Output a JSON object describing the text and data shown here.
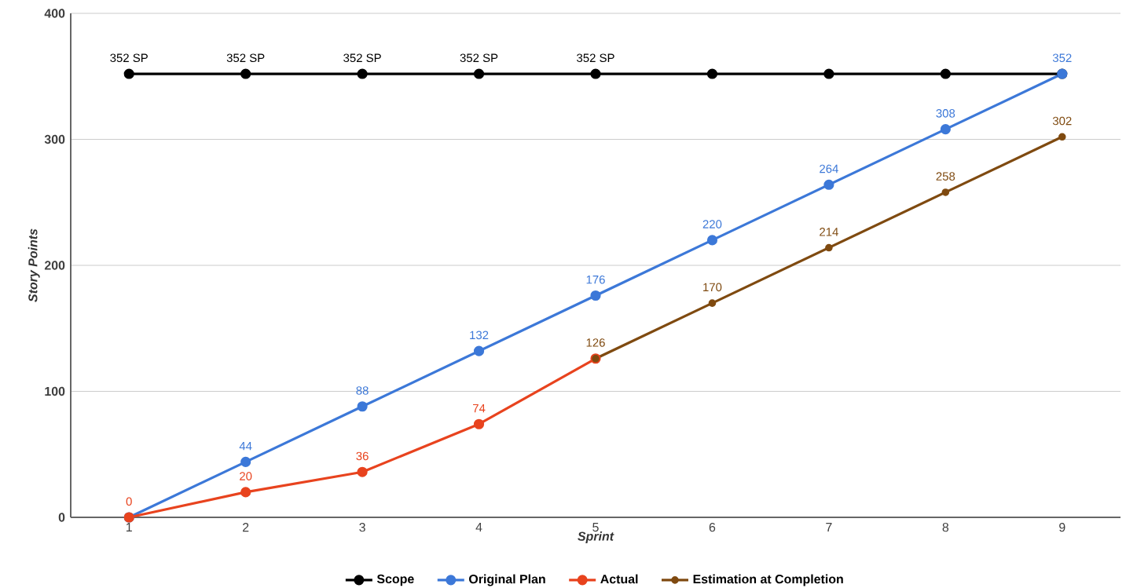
{
  "chart_data": {
    "type": "line",
    "xlabel": "Sprint",
    "ylabel": "Story Points",
    "categories": [
      "1",
      "2",
      "3",
      "4",
      "5",
      "6",
      "7",
      "8",
      "9"
    ],
    "ylim": [
      0,
      400
    ],
    "yticks": [
      0,
      100,
      200,
      300,
      400
    ],
    "grid": "y",
    "legend": "bottom",
    "marker": "circle",
    "series": [
      {
        "name": "Scope",
        "color": "#000000",
        "values": [
          352,
          352,
          352,
          352,
          352,
          352,
          352,
          352,
          352
        ],
        "value_labels": [
          "352 SP",
          "352 SP",
          "352 SP",
          "352 SP",
          "352 SP",
          null,
          null,
          null,
          null
        ]
      },
      {
        "name": "Original Plan",
        "color": "#3c78d8",
        "values": [
          0,
          44,
          88,
          132,
          176,
          220,
          264,
          308,
          352
        ],
        "value_labels": [
          null,
          "44",
          "88",
          "132",
          "176",
          "220",
          "264",
          "308",
          "352"
        ]
      },
      {
        "name": "Actual",
        "color": "#e8431e",
        "values": [
          0,
          20,
          36,
          74,
          126,
          null,
          null,
          null,
          null
        ],
        "value_labels": [
          "0",
          "20",
          "36",
          "74",
          null,
          null,
          null,
          null,
          null
        ]
      },
      {
        "name": "Estimation at Completion",
        "color": "#7f4a10",
        "values": [
          null,
          null,
          null,
          null,
          126,
          170,
          214,
          258,
          302
        ],
        "value_labels": [
          null,
          null,
          null,
          null,
          "126",
          "170",
          "214",
          "258",
          "302"
        ]
      }
    ]
  }
}
